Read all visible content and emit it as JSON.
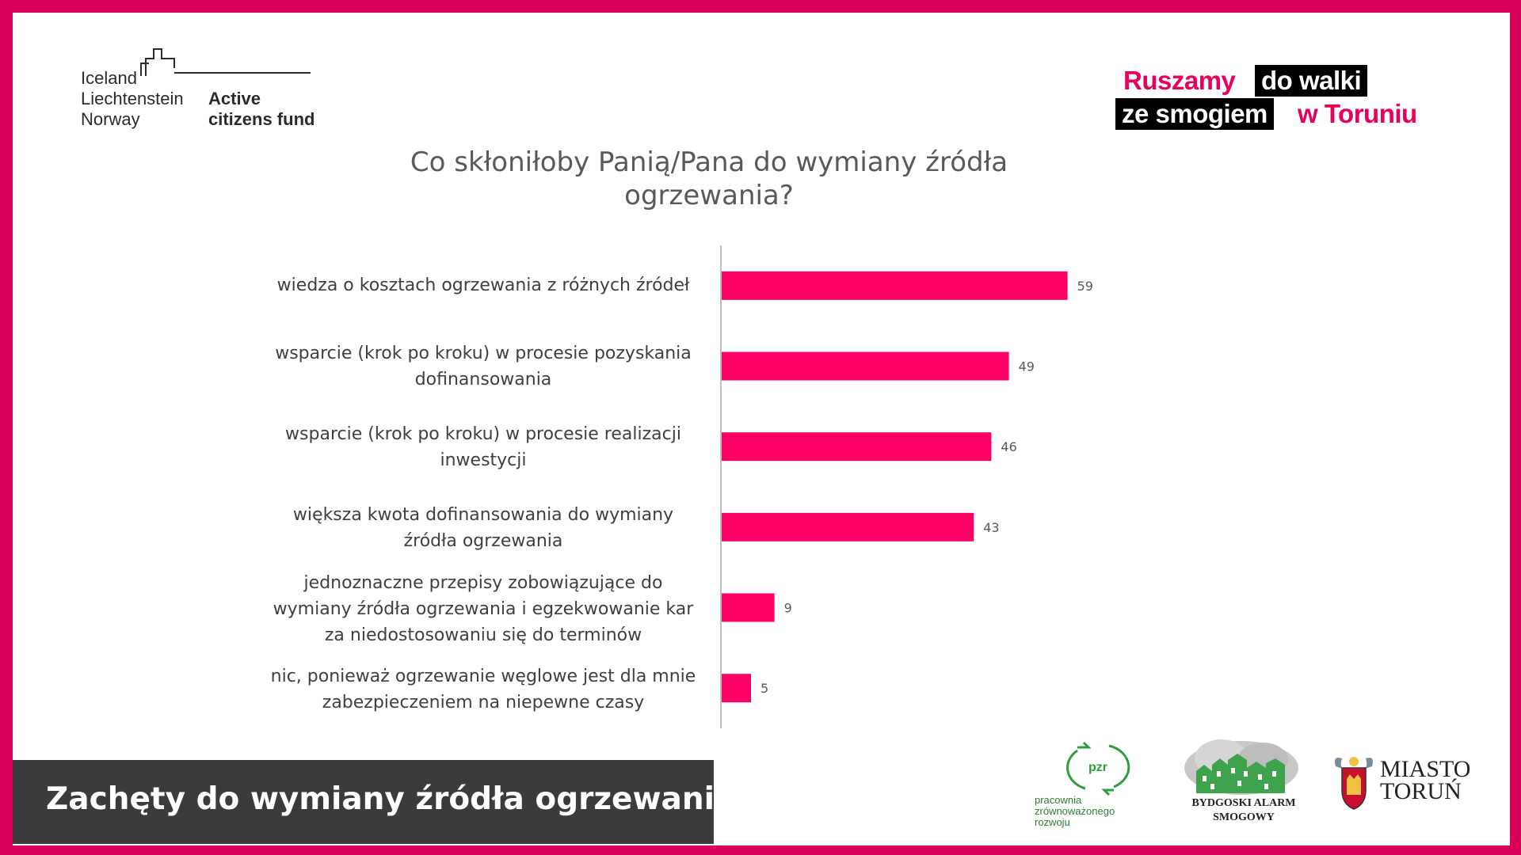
{
  "colors": {
    "frame": "#d8005a",
    "bar": "#ff0066",
    "footer_bg": "#3b3b3b"
  },
  "eea_logo": {
    "countries": [
      "Iceland",
      "Liechtenstein",
      "Norway"
    ],
    "fund_line1": "Active",
    "fund_line2": "citizens fund"
  },
  "campaign_logo": {
    "line1_part1": "Ruszamy",
    "line1_part2": "do walki",
    "line2_part1": "ze smogiem",
    "line2_part2": "w Toruniu"
  },
  "chart_data": {
    "type": "bar",
    "orientation": "horizontal",
    "title": "Co skłoniłoby Panią/Pana do wymiany źródła ogrzewania?",
    "categories": [
      "wiedza o kosztach ogrzewania z różnych źródeł",
      "wsparcie (krok po kroku) w procesie pozyskania dofinansowania",
      "wsparcie (krok po kroku) w procesie realizacji inwestycji",
      "większa kwota dofinansowania do wymiany źródła ogrzewania",
      "jednoznaczne przepisy zobowiązujące do wymiany źródła ogrzewania i egzekwowanie kar za niedostosowaniu się do terminów",
      "nic, ponieważ ogrzewanie węglowe jest dla mnie zabezpieczeniem na niepewne czasy"
    ],
    "values": [
      59,
      49,
      46,
      43,
      9,
      5
    ],
    "data_labels": [
      "59",
      "49",
      "46",
      "43",
      "9",
      "5"
    ],
    "xlim": [
      0,
      70
    ],
    "grid": false
  },
  "category_lines": [
    [
      "wiedza o kosztach ogrzewania z różnych źródeł"
    ],
    [
      "wsparcie (krok po kroku) w procesie pozyskania",
      "dofinansowania"
    ],
    [
      "wsparcie (krok po kroku) w procesie realizacji",
      "inwestycji"
    ],
    [
      "większa kwota dofinansowania do wymiany",
      "źródła ogrzewania"
    ],
    [
      "jednoznaczne przepisy zobowiązujące do",
      "wymiany źródła ogrzewania i egzekwowanie kar",
      "za niedostosowaniu się do terminów"
    ],
    [
      "nic, ponieważ ogrzewanie węglowe jest dla mnie",
      "zabezpieczeniem na niepewne czasy"
    ]
  ],
  "footer": {
    "title": "Zachęty do wymiany źródła ogrzewania"
  },
  "partner_logos": {
    "pzr_mark": "pzr",
    "pzr_text": "pracownia\nzrównoważonego\nrozwoju",
    "bas_text": "BYDGOSKI ALARM SMOGOWY",
    "torun_text": "MIASTO\nTORUŃ"
  }
}
